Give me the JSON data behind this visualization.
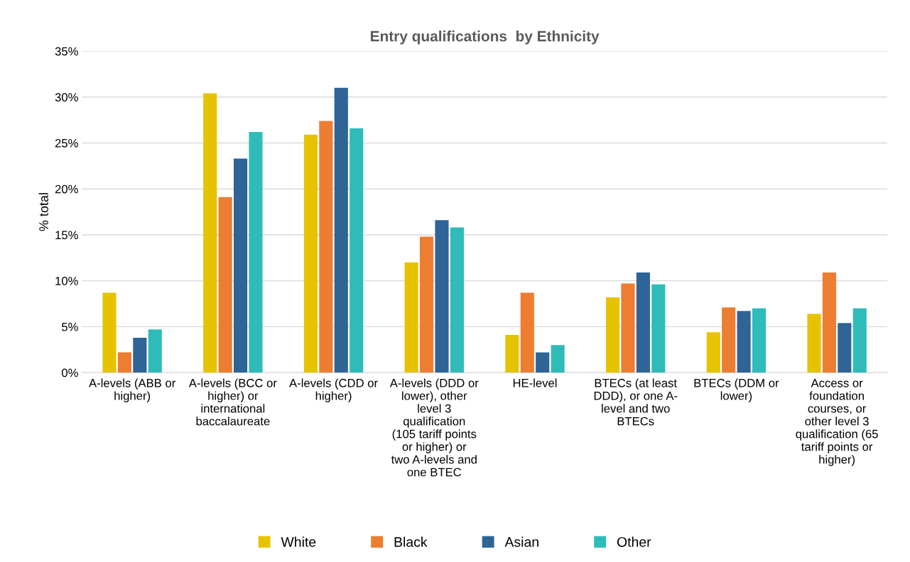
{
  "chart_data": {
    "type": "bar",
    "title": "Entry qualifications  by Ethnicity",
    "ylabel": "% total",
    "categories": [
      "A-levels (ABB or\nhigher)",
      "A-levels (BCC or\nhigher) or\ninternational\nbaccalaureate",
      "A-levels (CDD or\nhigher)",
      "A-levels (DDD or\nlower), other\nlevel 3\nqualification\n(105 tariff points\nor higher) or\ntwo A-levels and\none BTEC",
      "HE-level",
      "BTECs (at least\nDDD), or one A-\nlevel and two\nBTECs",
      "BTECs (DDM or\nlower)",
      "Access or\nfoundation\ncourses, or\nother level 3\nqualification (65\ntariff points or\nhigher)"
    ],
    "series": [
      {
        "name": "White",
        "color": "#e6c300",
        "values": [
          8.7,
          30.4,
          25.9,
          12.0,
          4.1,
          8.2,
          4.4,
          6.4
        ]
      },
      {
        "name": "Black",
        "color": "#ed7d31",
        "values": [
          2.2,
          19.1,
          27.4,
          14.8,
          8.7,
          9.7,
          7.1,
          10.9
        ]
      },
      {
        "name": "Asian",
        "color": "#2e6496",
        "values": [
          3.8,
          23.3,
          31.0,
          16.6,
          2.2,
          10.9,
          6.7,
          5.4
        ]
      },
      {
        "name": "Other",
        "color": "#2fbcb9",
        "values": [
          4.7,
          26.2,
          26.6,
          15.8,
          3.0,
          9.6,
          7.0,
          7.0
        ]
      }
    ],
    "ylim": [
      0,
      35
    ],
    "yticks": [
      {
        "value": 0,
        "label": "0%"
      },
      {
        "value": 5,
        "label": "5%"
      },
      {
        "value": 10,
        "label": "10%"
      },
      {
        "value": 15,
        "label": "15%"
      },
      {
        "value": 20,
        "label": "20%"
      },
      {
        "value": 25,
        "label": "25%"
      },
      {
        "value": 30,
        "label": "30%"
      },
      {
        "value": 35,
        "label": "35%"
      }
    ],
    "grid": "y",
    "legend": "bottom"
  }
}
